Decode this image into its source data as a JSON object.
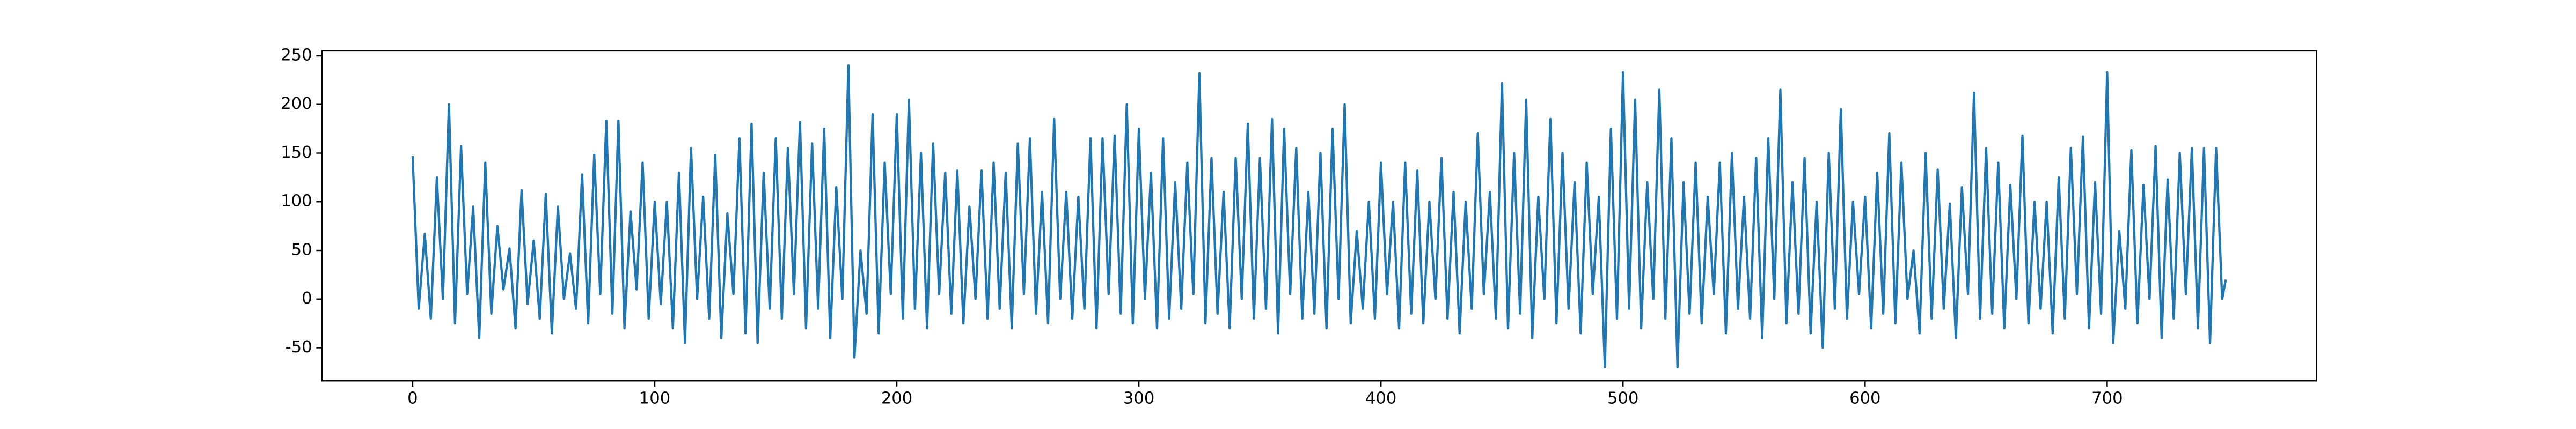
{
  "chart_data": {
    "type": "line",
    "color": "#1f77b4",
    "x": [
      0,
      2.5,
      5,
      7.5,
      10,
      12.5,
      15,
      17.5,
      20,
      22.5,
      25,
      27.5,
      30,
      32.5,
      35,
      37.5,
      40,
      42.5,
      45,
      47.5,
      50,
      52.5,
      55,
      57.5,
      60,
      62.5,
      65,
      67.5,
      70,
      72.5,
      75,
      77.5,
      80,
      82.5,
      85,
      87.5,
      90,
      92.5,
      95,
      97.5,
      100,
      102.5,
      105,
      107.5,
      110,
      112.5,
      115,
      117.5,
      120,
      122.5,
      125,
      127.5,
      130,
      132.5,
      135,
      137.5,
      140,
      142.5,
      145,
      147.5,
      150,
      152.5,
      155,
      157.5,
      160,
      162.5,
      165,
      167.5,
      170,
      172.5,
      175,
      177.5,
      180,
      182.5,
      185,
      187.5,
      190,
      192.5,
      195,
      197.5,
      200,
      202.5,
      205,
      207.5,
      210,
      212.5,
      215,
      217.5,
      220,
      222.5,
      225,
      227.5,
      230,
      232.5,
      235,
      237.5,
      240,
      242.5,
      245,
      247.5,
      250,
      252.5,
      255,
      257.5,
      260,
      262.5,
      265,
      267.5,
      270,
      272.5,
      275,
      277.5,
      280,
      282.5,
      285,
      287.5,
      290,
      292.5,
      295,
      297.5,
      300,
      302.5,
      305,
      307.5,
      310,
      312.5,
      315,
      317.5,
      320,
      322.5,
      325,
      327.5,
      330,
      332.5,
      335,
      337.5,
      340,
      342.5,
      345,
      347.5,
      350,
      352.5,
      355,
      357.5,
      360,
      362.5,
      365,
      367.5,
      370,
      372.5,
      375,
      377.5,
      380,
      382.5,
      385,
      387.5,
      390,
      392.5,
      395,
      397.5,
      400,
      402.5,
      405,
      407.5,
      410,
      412.5,
      415,
      417.5,
      420,
      422.5,
      425,
      427.5,
      430,
      432.5,
      435,
      437.5,
      440,
      442.5,
      445,
      447.5,
      450,
      452.5,
      455,
      457.5,
      460,
      462.5,
      465,
      467.5,
      470,
      472.5,
      475,
      477.5,
      480,
      482.5,
      485,
      487.5,
      490,
      492.5,
      495,
      497.5,
      500,
      502.5,
      505,
      507.5,
      510,
      512.5,
      515,
      517.5,
      520,
      522.5,
      525,
      527.5,
      530,
      532.5,
      535,
      537.5,
      540,
      542.5,
      545,
      547.5,
      550,
      552.5,
      555,
      557.5,
      560,
      562.5,
      565,
      567.5,
      570,
      572.5,
      575,
      577.5,
      580,
      582.5,
      585,
      587.5,
      590,
      592.5,
      595,
      597.5,
      600,
      602.5,
      605,
      607.5,
      610,
      612.5,
      615,
      617.5,
      620,
      622.5,
      625,
      627.5,
      630,
      632.5,
      635,
      637.5,
      640,
      642.5,
      645,
      647.5,
      650,
      652.5,
      655,
      657.5,
      660,
      662.5,
      665,
      667.5,
      670,
      672.5,
      675,
      677.5,
      680,
      682.5,
      685,
      687.5,
      690,
      692.5,
      695,
      697.5,
      700,
      702.5,
      705,
      707.5,
      710,
      712.5,
      715,
      717.5,
      720,
      722.5,
      725,
      727.5,
      730,
      732.5,
      735,
      737.5,
      740,
      742.5,
      745,
      747.5,
      749
    ],
    "values": [
      147,
      -10,
      67,
      -20,
      125,
      0,
      200,
      -25,
      157,
      5,
      95,
      -40,
      140,
      -15,
      75,
      10,
      52,
      -30,
      112,
      -5,
      60,
      -20,
      108,
      -35,
      95,
      0,
      47,
      -10,
      128,
      -25,
      148,
      5,
      183,
      -15,
      183,
      -30,
      90,
      10,
      140,
      -20,
      100,
      -5,
      100,
      -30,
      130,
      -45,
      155,
      0,
      105,
      -20,
      148,
      -40,
      88,
      5,
      165,
      -35,
      180,
      -45,
      130,
      -10,
      165,
      -20,
      155,
      5,
      182,
      -30,
      160,
      -10,
      175,
      -40,
      115,
      0,
      240,
      -60,
      50,
      -15,
      190,
      -35,
      140,
      5,
      190,
      -20,
      205,
      -10,
      150,
      -30,
      160,
      5,
      130,
      -15,
      132,
      -25,
      95,
      0,
      132,
      -20,
      140,
      -10,
      130,
      -30,
      160,
      5,
      165,
      -15,
      110,
      -25,
      185,
      0,
      110,
      -20,
      105,
      -10,
      165,
      -30,
      165,
      5,
      168,
      -15,
      200,
      -25,
      175,
      0,
      130,
      -30,
      165,
      -20,
      120,
      -10,
      140,
      5,
      232,
      -25,
      145,
      -15,
      110,
      -30,
      145,
      0,
      180,
      -20,
      145,
      -10,
      185,
      -35,
      175,
      5,
      155,
      -20,
      110,
      -15,
      150,
      -30,
      175,
      0,
      200,
      -25,
      70,
      -10,
      100,
      -20,
      140,
      5,
      100,
      -30,
      140,
      -15,
      132,
      -25,
      100,
      0,
      145,
      -20,
      110,
      -35,
      100,
      -10,
      170,
      5,
      110,
      -20,
      222,
      -30,
      150,
      -15,
      205,
      -40,
      105,
      0,
      185,
      -25,
      150,
      -10,
      120,
      -35,
      140,
      5,
      105,
      -70,
      175,
      -20,
      233,
      -10,
      205,
      -30,
      120,
      0,
      215,
      -20,
      165,
      -70,
      120,
      -15,
      140,
      -25,
      105,
      5,
      140,
      -35,
      150,
      -10,
      105,
      -20,
      145,
      -40,
      165,
      0,
      215,
      -25,
      120,
      -15,
      145,
      -35,
      100,
      -50,
      150,
      -10,
      195,
      -20,
      100,
      5,
      105,
      -30,
      130,
      -15,
      170,
      -25,
      140,
      0,
      50,
      -35,
      150,
      -20,
      133,
      -10,
      98,
      -40,
      115,
      5,
      212,
      -20,
      155,
      -15,
      140,
      -30,
      117,
      0,
      168,
      -25,
      100,
      -10,
      100,
      -35,
      125,
      -20,
      155,
      5,
      167,
      -30,
      120,
      -15,
      233,
      -45,
      70,
      -10,
      153,
      -25,
      117,
      0,
      157,
      -40,
      123,
      -20,
      150,
      5,
      155,
      -30,
      155,
      -45,
      155,
      0,
      20
    ],
    "xlim": [
      -37.45,
      786.45
    ],
    "xticks": [
      0,
      100,
      200,
      300,
      400,
      500,
      600,
      700
    ],
    "ylim": [
      -84,
      255
    ],
    "yticks": [
      -50,
      0,
      50,
      100,
      150,
      200,
      250
    ]
  }
}
